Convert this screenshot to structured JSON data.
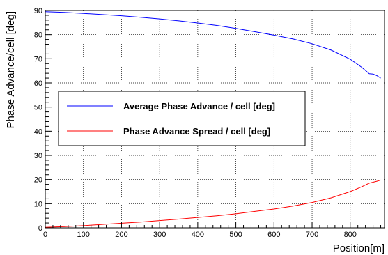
{
  "chart_data": {
    "type": "line",
    "xlabel": "Position[m]",
    "ylabel": "Phase Advance/cell [deg]",
    "xlim": [
      0,
      890
    ],
    "ylim": [
      0,
      90
    ],
    "xticks": [
      0,
      100,
      200,
      300,
      400,
      500,
      600,
      700,
      800
    ],
    "yticks": [
      0,
      10,
      20,
      30,
      40,
      50,
      60,
      70,
      80,
      90
    ],
    "grid": true,
    "legend_position": "center-left",
    "series": [
      {
        "name": "Average Phase Advance / cell [deg]",
        "color": "#0000ff",
        "x": [
          0,
          50,
          100,
          150,
          200,
          250,
          300,
          350,
          400,
          450,
          500,
          550,
          600,
          650,
          700,
          750,
          800,
          830,
          850,
          860,
          870,
          880
        ],
        "y": [
          89.5,
          89.2,
          88.8,
          88.3,
          87.8,
          87.2,
          86.5,
          85.7,
          84.8,
          83.8,
          82.6,
          81.2,
          79.8,
          78.2,
          76.2,
          73.6,
          69.8,
          66.5,
          63.8,
          63.7,
          63.0,
          62.0
        ]
      },
      {
        "name": "Phase Advance Spread / cell [deg]",
        "color": "#ff0000",
        "x": [
          0,
          50,
          100,
          150,
          200,
          250,
          300,
          350,
          400,
          450,
          500,
          550,
          600,
          650,
          700,
          750,
          800,
          830,
          850,
          860,
          870,
          880
        ],
        "y": [
          0.2,
          0.5,
          0.9,
          1.4,
          1.9,
          2.4,
          3.0,
          3.6,
          4.3,
          5.0,
          5.8,
          6.8,
          7.8,
          9.0,
          10.5,
          12.4,
          15.0,
          17.0,
          18.5,
          18.9,
          19.3,
          19.8
        ]
      }
    ]
  }
}
